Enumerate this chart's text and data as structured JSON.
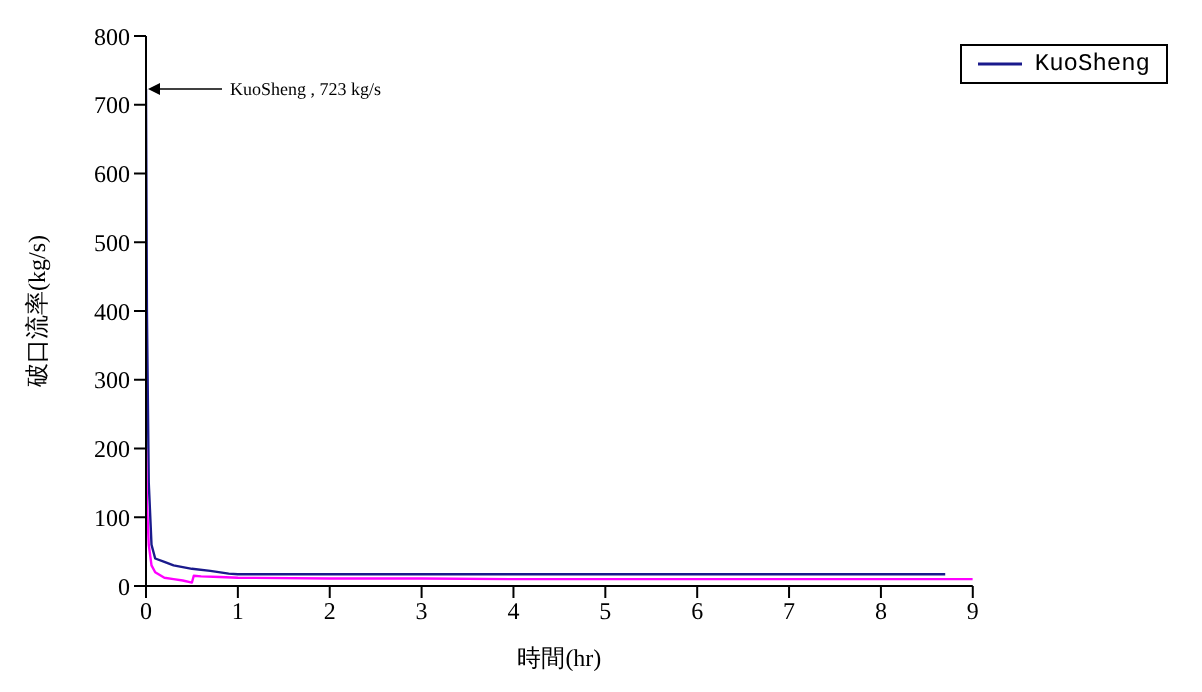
{
  "chart_data": {
    "type": "line",
    "xlabel": "時間(hr)",
    "ylabel": "破口流率(kg/s)",
    "xlim": [
      0,
      9
    ],
    "xticks": [
      0,
      1,
      2,
      3,
      4,
      5,
      6,
      7,
      8,
      9
    ],
    "ylim": [
      0,
      800
    ],
    "yticks": [
      0,
      100,
      200,
      300,
      400,
      500,
      600,
      700,
      800
    ],
    "legend": "top right",
    "marker": "none",
    "line_style": "solid",
    "annotations": [
      {
        "text": "KuoSheng , 723 kg/s",
        "x": 0,
        "y": 723
      }
    ],
    "series": [
      {
        "name": "KuoSheng",
        "color": "#1a1a8c",
        "x": [
          0,
          0.01,
          0.03,
          0.06,
          0.1,
          0.2,
          0.3,
          0.5,
          0.7,
          0.9,
          1,
          2,
          3,
          4,
          5,
          6,
          7,
          7.01,
          8,
          8.7
        ],
        "values": [
          723,
          400,
          150,
          60,
          40,
          35,
          30,
          25,
          22,
          18,
          17,
          17,
          17,
          17,
          17,
          17,
          17,
          17,
          17,
          17
        ]
      },
      {
        "color": "#ff00ff",
        "x": [
          0,
          0.01,
          0.03,
          0.06,
          0.1,
          0.2,
          0.3,
          0.4,
          0.5,
          0.52,
          0.6,
          0.8,
          1,
          2,
          3,
          4,
          5,
          6,
          7,
          8,
          9
        ],
        "values": [
          200,
          120,
          60,
          30,
          20,
          12,
          10,
          8,
          5,
          15,
          14,
          13,
          12,
          11,
          11,
          10,
          10,
          10,
          10,
          10,
          10
        ]
      }
    ]
  }
}
